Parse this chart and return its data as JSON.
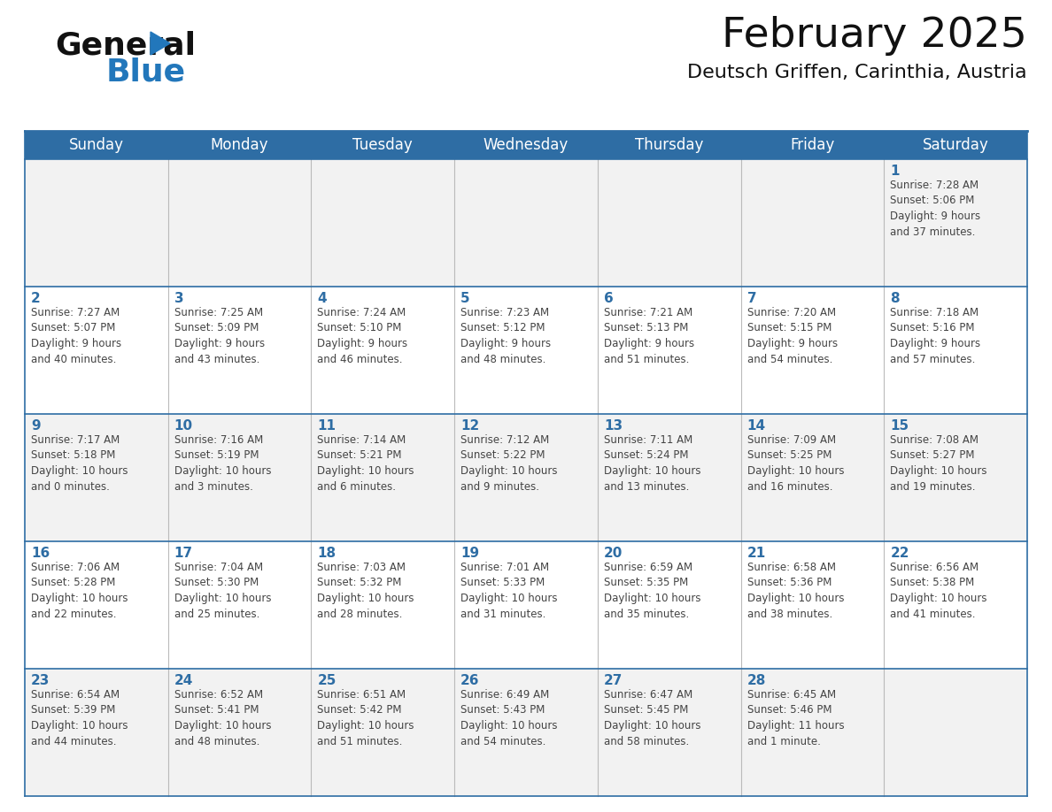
{
  "title": "February 2025",
  "subtitle": "Deutsch Griffen, Carinthia, Austria",
  "header_bg": "#2E6DA4",
  "header_text_color": "#FFFFFF",
  "cell_bg_even": "#F2F2F2",
  "cell_bg_odd": "#FFFFFF",
  "day_number_color": "#2E6DA4",
  "info_text_color": "#444444",
  "days_of_week": [
    "Sunday",
    "Monday",
    "Tuesday",
    "Wednesday",
    "Thursday",
    "Friday",
    "Saturday"
  ],
  "weeks": [
    [
      {
        "day": "",
        "info": ""
      },
      {
        "day": "",
        "info": ""
      },
      {
        "day": "",
        "info": ""
      },
      {
        "day": "",
        "info": ""
      },
      {
        "day": "",
        "info": ""
      },
      {
        "day": "",
        "info": ""
      },
      {
        "day": "1",
        "info": "Sunrise: 7:28 AM\nSunset: 5:06 PM\nDaylight: 9 hours\nand 37 minutes."
      }
    ],
    [
      {
        "day": "2",
        "info": "Sunrise: 7:27 AM\nSunset: 5:07 PM\nDaylight: 9 hours\nand 40 minutes."
      },
      {
        "day": "3",
        "info": "Sunrise: 7:25 AM\nSunset: 5:09 PM\nDaylight: 9 hours\nand 43 minutes."
      },
      {
        "day": "4",
        "info": "Sunrise: 7:24 AM\nSunset: 5:10 PM\nDaylight: 9 hours\nand 46 minutes."
      },
      {
        "day": "5",
        "info": "Sunrise: 7:23 AM\nSunset: 5:12 PM\nDaylight: 9 hours\nand 48 minutes."
      },
      {
        "day": "6",
        "info": "Sunrise: 7:21 AM\nSunset: 5:13 PM\nDaylight: 9 hours\nand 51 minutes."
      },
      {
        "day": "7",
        "info": "Sunrise: 7:20 AM\nSunset: 5:15 PM\nDaylight: 9 hours\nand 54 minutes."
      },
      {
        "day": "8",
        "info": "Sunrise: 7:18 AM\nSunset: 5:16 PM\nDaylight: 9 hours\nand 57 minutes."
      }
    ],
    [
      {
        "day": "9",
        "info": "Sunrise: 7:17 AM\nSunset: 5:18 PM\nDaylight: 10 hours\nand 0 minutes."
      },
      {
        "day": "10",
        "info": "Sunrise: 7:16 AM\nSunset: 5:19 PM\nDaylight: 10 hours\nand 3 minutes."
      },
      {
        "day": "11",
        "info": "Sunrise: 7:14 AM\nSunset: 5:21 PM\nDaylight: 10 hours\nand 6 minutes."
      },
      {
        "day": "12",
        "info": "Sunrise: 7:12 AM\nSunset: 5:22 PM\nDaylight: 10 hours\nand 9 minutes."
      },
      {
        "day": "13",
        "info": "Sunrise: 7:11 AM\nSunset: 5:24 PM\nDaylight: 10 hours\nand 13 minutes."
      },
      {
        "day": "14",
        "info": "Sunrise: 7:09 AM\nSunset: 5:25 PM\nDaylight: 10 hours\nand 16 minutes."
      },
      {
        "day": "15",
        "info": "Sunrise: 7:08 AM\nSunset: 5:27 PM\nDaylight: 10 hours\nand 19 minutes."
      }
    ],
    [
      {
        "day": "16",
        "info": "Sunrise: 7:06 AM\nSunset: 5:28 PM\nDaylight: 10 hours\nand 22 minutes."
      },
      {
        "day": "17",
        "info": "Sunrise: 7:04 AM\nSunset: 5:30 PM\nDaylight: 10 hours\nand 25 minutes."
      },
      {
        "day": "18",
        "info": "Sunrise: 7:03 AM\nSunset: 5:32 PM\nDaylight: 10 hours\nand 28 minutes."
      },
      {
        "day": "19",
        "info": "Sunrise: 7:01 AM\nSunset: 5:33 PM\nDaylight: 10 hours\nand 31 minutes."
      },
      {
        "day": "20",
        "info": "Sunrise: 6:59 AM\nSunset: 5:35 PM\nDaylight: 10 hours\nand 35 minutes."
      },
      {
        "day": "21",
        "info": "Sunrise: 6:58 AM\nSunset: 5:36 PM\nDaylight: 10 hours\nand 38 minutes."
      },
      {
        "day": "22",
        "info": "Sunrise: 6:56 AM\nSunset: 5:38 PM\nDaylight: 10 hours\nand 41 minutes."
      }
    ],
    [
      {
        "day": "23",
        "info": "Sunrise: 6:54 AM\nSunset: 5:39 PM\nDaylight: 10 hours\nand 44 minutes."
      },
      {
        "day": "24",
        "info": "Sunrise: 6:52 AM\nSunset: 5:41 PM\nDaylight: 10 hours\nand 48 minutes."
      },
      {
        "day": "25",
        "info": "Sunrise: 6:51 AM\nSunset: 5:42 PM\nDaylight: 10 hours\nand 51 minutes."
      },
      {
        "day": "26",
        "info": "Sunrise: 6:49 AM\nSunset: 5:43 PM\nDaylight: 10 hours\nand 54 minutes."
      },
      {
        "day": "27",
        "info": "Sunrise: 6:47 AM\nSunset: 5:45 PM\nDaylight: 10 hours\nand 58 minutes."
      },
      {
        "day": "28",
        "info": "Sunrise: 6:45 AM\nSunset: 5:46 PM\nDaylight: 11 hours\nand 1 minute."
      },
      {
        "day": "",
        "info": ""
      }
    ]
  ],
  "logo_color_general": "#111111",
  "logo_color_blue": "#2277BB",
  "title_fontsize": 34,
  "subtitle_fontsize": 16,
  "header_fontsize": 12,
  "day_num_fontsize": 11,
  "info_fontsize": 8.5
}
